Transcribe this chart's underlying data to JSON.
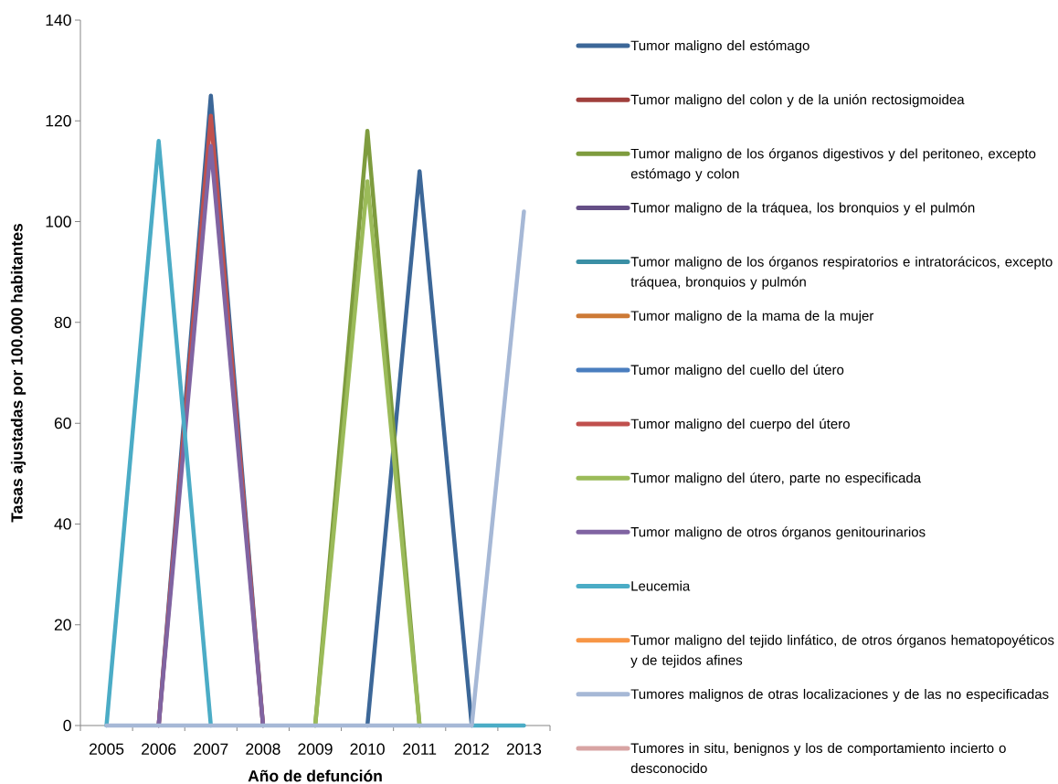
{
  "chart_data": {
    "type": "line",
    "xlabel": "Año de defunción",
    "ylabel": "Tasas ajustadas por 100.000 habitantes",
    "categories": [
      "2005",
      "2006",
      "2007",
      "2008",
      "2009",
      "2010",
      "2011",
      "2012",
      "2013"
    ],
    "ylim": [
      0,
      140
    ],
    "yticks": [
      0,
      20,
      40,
      60,
      80,
      100,
      120,
      140
    ],
    "legend": "right",
    "series": [
      {
        "name": "Tumor maligno del estómago",
        "color": "#3c6798",
        "values": [
          null,
          0,
          125,
          0,
          null,
          0,
          110,
          0,
          null
        ]
      },
      {
        "name": "Tumor maligno del colon y de la unión rectosigmoidea",
        "color": "#a03f3c",
        "values": [
          null,
          null,
          null,
          null,
          null,
          null,
          null,
          null,
          null
        ]
      },
      {
        "name": "Tumor maligno de los órganos digestivos y del peritoneo, excepto estómago y colon",
        "color": "#7e9c3e",
        "values": [
          null,
          null,
          null,
          null,
          0,
          118,
          0,
          null,
          null
        ]
      },
      {
        "name": "Tumor maligno de la tráquea, los bronquios y el pulmón",
        "color": "#654f86",
        "values": [
          null,
          null,
          null,
          null,
          null,
          null,
          null,
          null,
          null
        ]
      },
      {
        "name": "Tumor maligno de los órganos respiratorios e intratorácicos, excepto tráquea, bronquios y pulmón",
        "color": "#3a8fa5",
        "values": [
          null,
          null,
          null,
          null,
          null,
          null,
          null,
          null,
          null
        ]
      },
      {
        "name": "Tumor maligno de la mama de la mujer",
        "color": "#cd7a36",
        "values": [
          null,
          null,
          null,
          null,
          null,
          null,
          null,
          null,
          null
        ]
      },
      {
        "name": "Tumor maligno del cuello del útero",
        "color": "#4a7ebf",
        "values": [
          null,
          null,
          null,
          null,
          null,
          null,
          null,
          null,
          null
        ]
      },
      {
        "name": "Tumor maligno del cuerpo del útero",
        "color": "#c0504d",
        "values": [
          null,
          0,
          121,
          0,
          null,
          null,
          null,
          null,
          null
        ]
      },
      {
        "name": "Tumor maligno del útero, parte no especificada",
        "color": "#9bbb59",
        "values": [
          null,
          null,
          null,
          null,
          0,
          108,
          0,
          null,
          null
        ]
      },
      {
        "name": "Tumor maligno de otros órganos genitourinarios",
        "color": "#8064a2",
        "values": [
          null,
          0,
          115,
          0,
          null,
          null,
          null,
          null,
          null
        ]
      },
      {
        "name": "Leucemia",
        "color": "#4bacc6",
        "values": [
          0,
          116,
          0,
          null,
          null,
          null,
          null,
          0,
          0
        ]
      },
      {
        "name": "Tumor maligno del tejido linfático, de otros órganos hematopoyéticos y de tejidos afines",
        "color": "#f79646",
        "values": [
          null,
          null,
          null,
          null,
          null,
          null,
          null,
          null,
          null
        ]
      },
      {
        "name": "Tumores malignos de otras localizaciones y de las no especificadas",
        "color": "#a6b8d6",
        "values": [
          0,
          0,
          0,
          0,
          0,
          0,
          0,
          0,
          102
        ]
      },
      {
        "name": "Tumores in situ, benignos y los de comportamiento incierto o desconocido",
        "color": "#d8a4a3",
        "values": [
          null,
          null,
          null,
          null,
          null,
          null,
          null,
          null,
          null
        ]
      }
    ]
  }
}
